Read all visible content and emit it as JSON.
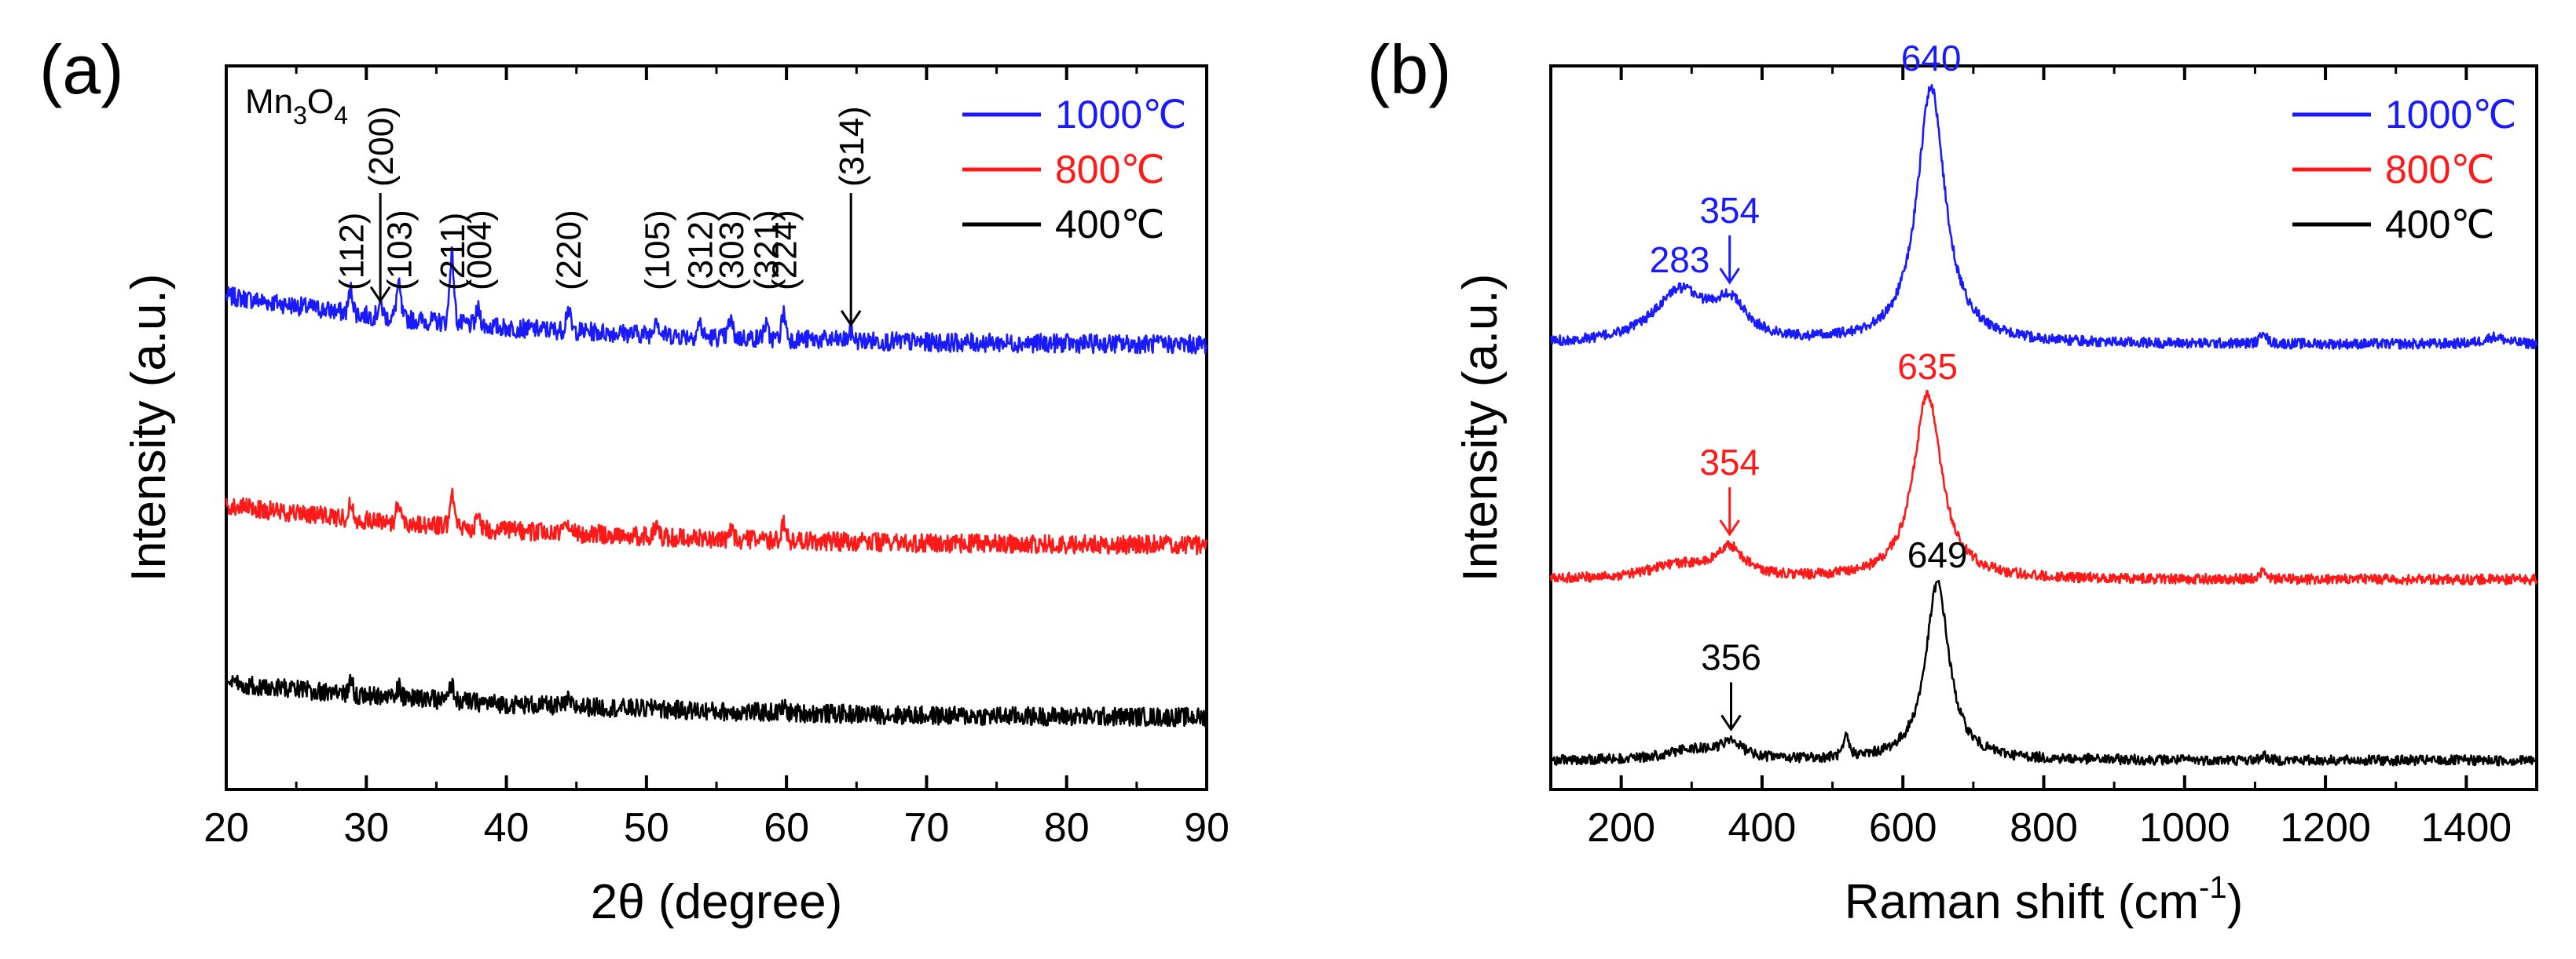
{
  "figure": {
    "panels": [
      {
        "id": "a",
        "label": "(a)"
      },
      {
        "id": "b",
        "label": "(b)"
      }
    ]
  },
  "chart_data": [
    {
      "type": "line",
      "panel": "(a)",
      "title": "",
      "xlabel": "2θ (degree)",
      "ylabel": "Intensity (a.u.)",
      "xlim": [
        20,
        90
      ],
      "ylim": [
        0,
        1
      ],
      "xticks": [
        20,
        30,
        40,
        50,
        60,
        70,
        80,
        90
      ],
      "yticks_shown": false,
      "compound_label": {
        "base": "Mn",
        "sub1": "3",
        "mid": "O",
        "sub2": "4"
      },
      "legend": [
        {
          "label": "1000℃",
          "color": "#1a1aff"
        },
        {
          "label": "800℃",
          "color": "#ff1a1a"
        },
        {
          "label": "400℃",
          "color": "#000000"
        }
      ],
      "series": [
        {
          "name": "1000℃",
          "color": "#1a1aff",
          "baseline": [
            [
              20,
              0.682
            ],
            [
              30,
              0.655
            ],
            [
              40,
              0.638
            ],
            [
              55,
              0.625
            ],
            [
              70,
              0.618
            ],
            [
              90,
              0.615
            ]
          ],
          "peaks": [
            [
              28.9,
              0.032
            ],
            [
              31.0,
              0.018
            ],
            [
              32.3,
              0.045
            ],
            [
              36.1,
              0.095
            ],
            [
              38.0,
              0.022
            ],
            [
              44.4,
              0.03
            ],
            [
              50.7,
              0.025
            ],
            [
              53.8,
              0.018
            ],
            [
              56.0,
              0.024
            ],
            [
              58.5,
              0.018
            ],
            [
              59.8,
              0.035
            ],
            [
              64.6,
              0.012
            ]
          ]
        },
        {
          "name": "800℃",
          "color": "#ff1a1a",
          "baseline": [
            [
              20,
              0.392
            ],
            [
              30,
              0.372
            ],
            [
              40,
              0.358
            ],
            [
              55,
              0.346
            ],
            [
              70,
              0.34
            ],
            [
              90,
              0.338
            ]
          ],
          "peaks": [
            [
              28.9,
              0.022
            ],
            [
              32.3,
              0.03
            ],
            [
              36.1,
              0.052
            ],
            [
              38.0,
              0.014
            ],
            [
              44.4,
              0.016
            ],
            [
              50.7,
              0.016
            ],
            [
              56.0,
              0.012
            ],
            [
              59.8,
              0.022
            ]
          ]
        },
        {
          "name": "400℃",
          "color": "#000000",
          "baseline": [
            [
              20,
              0.146
            ],
            [
              30,
              0.13
            ],
            [
              40,
              0.118
            ],
            [
              55,
              0.108
            ],
            [
              70,
              0.102
            ],
            [
              90,
              0.1
            ]
          ],
          "peaks": [
            [
              28.9,
              0.016
            ],
            [
              32.3,
              0.014
            ],
            [
              36.1,
              0.022
            ],
            [
              44.4,
              0.008
            ],
            [
              50.7,
              0.008
            ],
            [
              59.8,
              0.008
            ]
          ]
        }
      ],
      "annotations": [
        {
          "text": "(112)",
          "x": 28.9
        },
        {
          "text": "(200)",
          "x": 31.0,
          "arrow": true
        },
        {
          "text": "(103)",
          "x": 32.3
        },
        {
          "text": "(211)",
          "x": 36.1
        },
        {
          "text": "(004)",
          "x": 38.0
        },
        {
          "text": "(220)",
          "x": 44.4
        },
        {
          "text": "(105)",
          "x": 50.7
        },
        {
          "text": "(312)",
          "x": 53.8
        },
        {
          "text": "(303)",
          "x": 56.0
        },
        {
          "text": "(321)",
          "x": 58.5
        },
        {
          "text": "(224)",
          "x": 59.8
        },
        {
          "text": "(314)",
          "x": 64.6,
          "arrow": true
        }
      ]
    },
    {
      "type": "line",
      "panel": "(b)",
      "title": "",
      "xlabel": "Raman shift (cm",
      "xlabel_sup": "-1",
      "xlabel_end": ")",
      "ylabel": "Intensity (a.u.)",
      "xlim": [
        100,
        1500
      ],
      "ylim": [
        0,
        1
      ],
      "xticks": [
        200,
        400,
        600,
        800,
        1000,
        1200,
        1400
      ],
      "yticks_shown": false,
      "legend": [
        {
          "label": "1000℃",
          "color": "#1a1aff"
        },
        {
          "label": "800℃",
          "color": "#ff1a1a"
        },
        {
          "label": "400℃",
          "color": "#000000"
        }
      ],
      "series": [
        {
          "name": "1000℃",
          "color": "#1a1aff",
          "baseline": 0.615,
          "peaks": [
            [
              283,
              0.07,
              45
            ],
            [
              354,
              0.048,
              28
            ],
            [
              640,
              0.355,
              24
            ],
            [
              1112,
              0.02,
              4
            ],
            [
              1440,
              0.01,
              18
            ]
          ]
        },
        {
          "name": "800℃",
          "color": "#ff1a1a",
          "baseline": 0.29,
          "peaks": [
            [
              280,
              0.018,
              50
            ],
            [
              354,
              0.04,
              25
            ],
            [
              635,
              0.255,
              24
            ],
            [
              1112,
              0.014,
              4
            ]
          ]
        },
        {
          "name": "400℃",
          "color": "#000000",
          "baseline": 0.04,
          "peaks": [
            [
              300,
              0.014,
              40
            ],
            [
              356,
              0.022,
              20
            ],
            [
              520,
              0.028,
              4
            ],
            [
              649,
              0.245,
              20
            ],
            [
              1112,
              0.008,
              4
            ]
          ]
        }
      ],
      "peak_labels": [
        {
          "text": "640",
          "x": 640,
          "series": "1000℃",
          "color": "#1a1aff"
        },
        {
          "text": "283",
          "x": 283,
          "series": "1000℃",
          "color": "#1a1aff"
        },
        {
          "text": "354",
          "x": 354,
          "series": "1000℃",
          "color": "#1a1aff",
          "arrow": true
        },
        {
          "text": "635",
          "x": 635,
          "series": "800℃",
          "color": "#ff1a1a"
        },
        {
          "text": "354",
          "x": 354,
          "series": "800℃",
          "color": "#ff1a1a",
          "arrow": true
        },
        {
          "text": "649",
          "x": 649,
          "series": "400℃",
          "color": "#000000"
        },
        {
          "text": "356",
          "x": 356,
          "series": "400℃",
          "color": "#000000",
          "arrow": true
        }
      ]
    }
  ]
}
